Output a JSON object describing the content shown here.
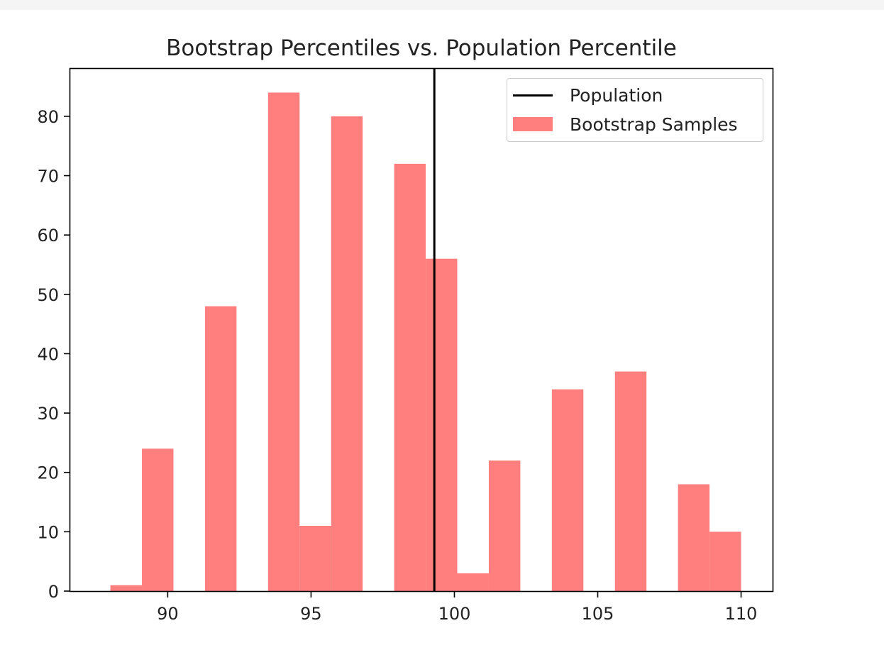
{
  "chart_data": {
    "type": "bar",
    "title": "Bootstrap Percentiles vs. Population Percentile",
    "xlabel": "",
    "ylabel": "",
    "xlim": [
      86.6,
      111.1
    ],
    "ylim": [
      0,
      88
    ],
    "xticks": [
      90,
      95,
      100,
      105,
      110
    ],
    "yticks": [
      0,
      10,
      20,
      30,
      40,
      50,
      60,
      70,
      80
    ],
    "grid": false,
    "legend_position": "top-right",
    "series": [
      {
        "name": "Bootstrap Samples",
        "kind": "histogram",
        "color": "#ff7f7f",
        "bin_edges": [
          88.0,
          89.1,
          90.2,
          91.3,
          92.4,
          93.5,
          94.6,
          95.7,
          96.8,
          97.9,
          99.0,
          100.1,
          101.2,
          102.3,
          103.4,
          104.5,
          105.6,
          106.7,
          107.8,
          108.9,
          110.0
        ],
        "counts": [
          1,
          24,
          0,
          48,
          0,
          84,
          11,
          80,
          0,
          72,
          56,
          3,
          22,
          0,
          34,
          0,
          37,
          0,
          18,
          10
        ]
      },
      {
        "name": "Population",
        "kind": "vline",
        "color": "#000000",
        "x": 99.3
      }
    ]
  }
}
